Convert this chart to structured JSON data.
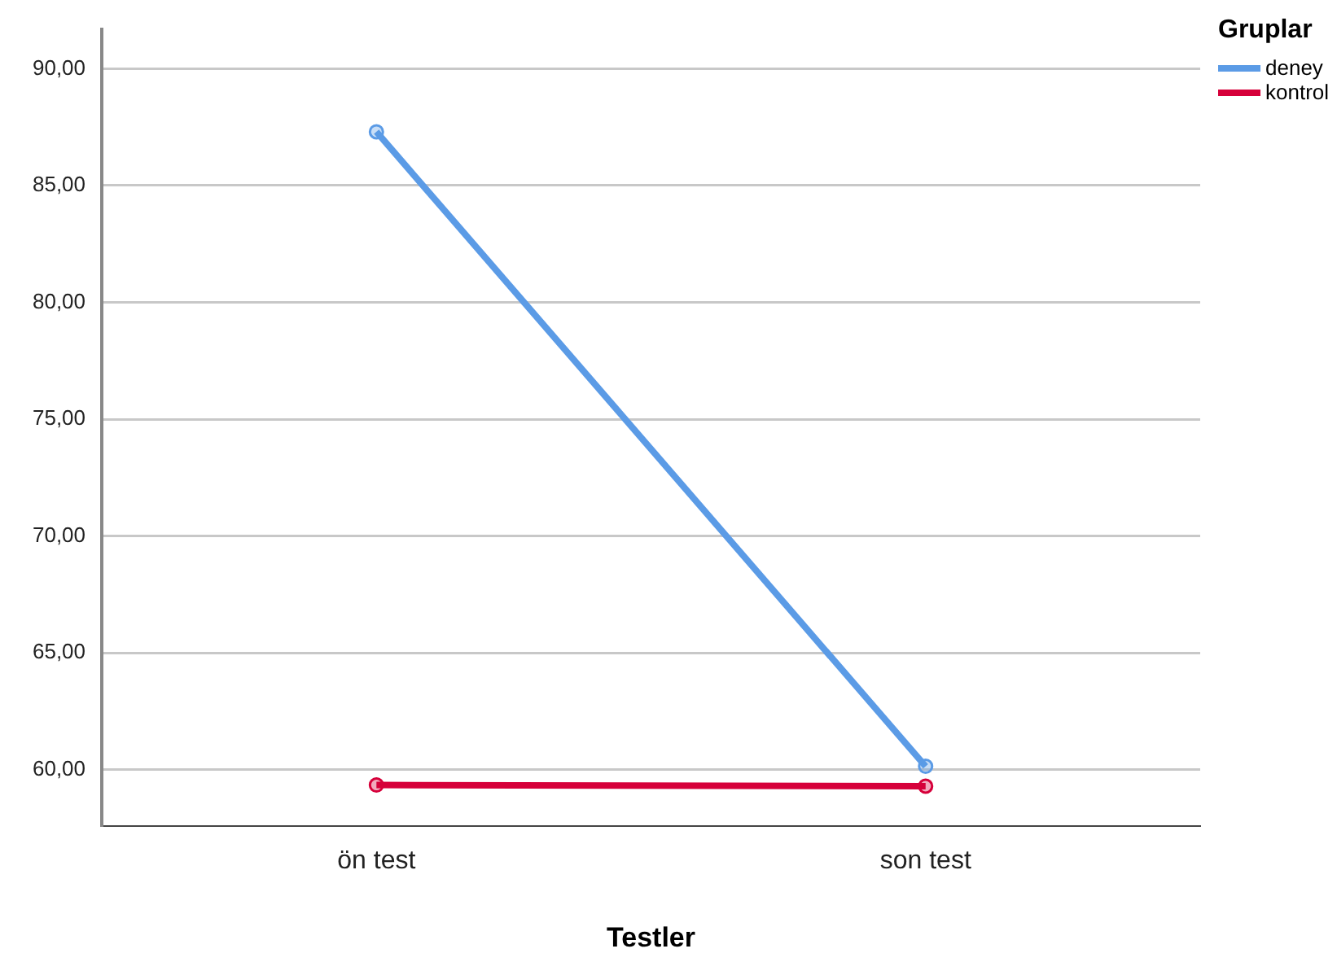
{
  "chart_data": {
    "type": "line",
    "xlabel": "Testler",
    "legend_title": "Gruplar",
    "legend": "top right",
    "grid": "y",
    "marker": "circle",
    "line_style": "solid",
    "categories": [
      "ön test",
      "son test"
    ],
    "series": [
      {
        "name": "deney",
        "color": "#5b9be6",
        "values": [
          87.3,
          60.15
        ]
      },
      {
        "name": "kontrol",
        "color": "#d6003a",
        "values": [
          59.35,
          59.3
        ]
      }
    ],
    "ylim": [
      57.6,
      91.7
    ],
    "yticks": [
      {
        "value": 60,
        "label": "60,00"
      },
      {
        "value": 65,
        "label": "65,00"
      },
      {
        "value": 70,
        "label": "70,00"
      },
      {
        "value": 75,
        "label": "75,00"
      },
      {
        "value": 80,
        "label": "80,00"
      },
      {
        "value": 85,
        "label": "85,00"
      },
      {
        "value": 90,
        "label": "90,00"
      }
    ]
  }
}
